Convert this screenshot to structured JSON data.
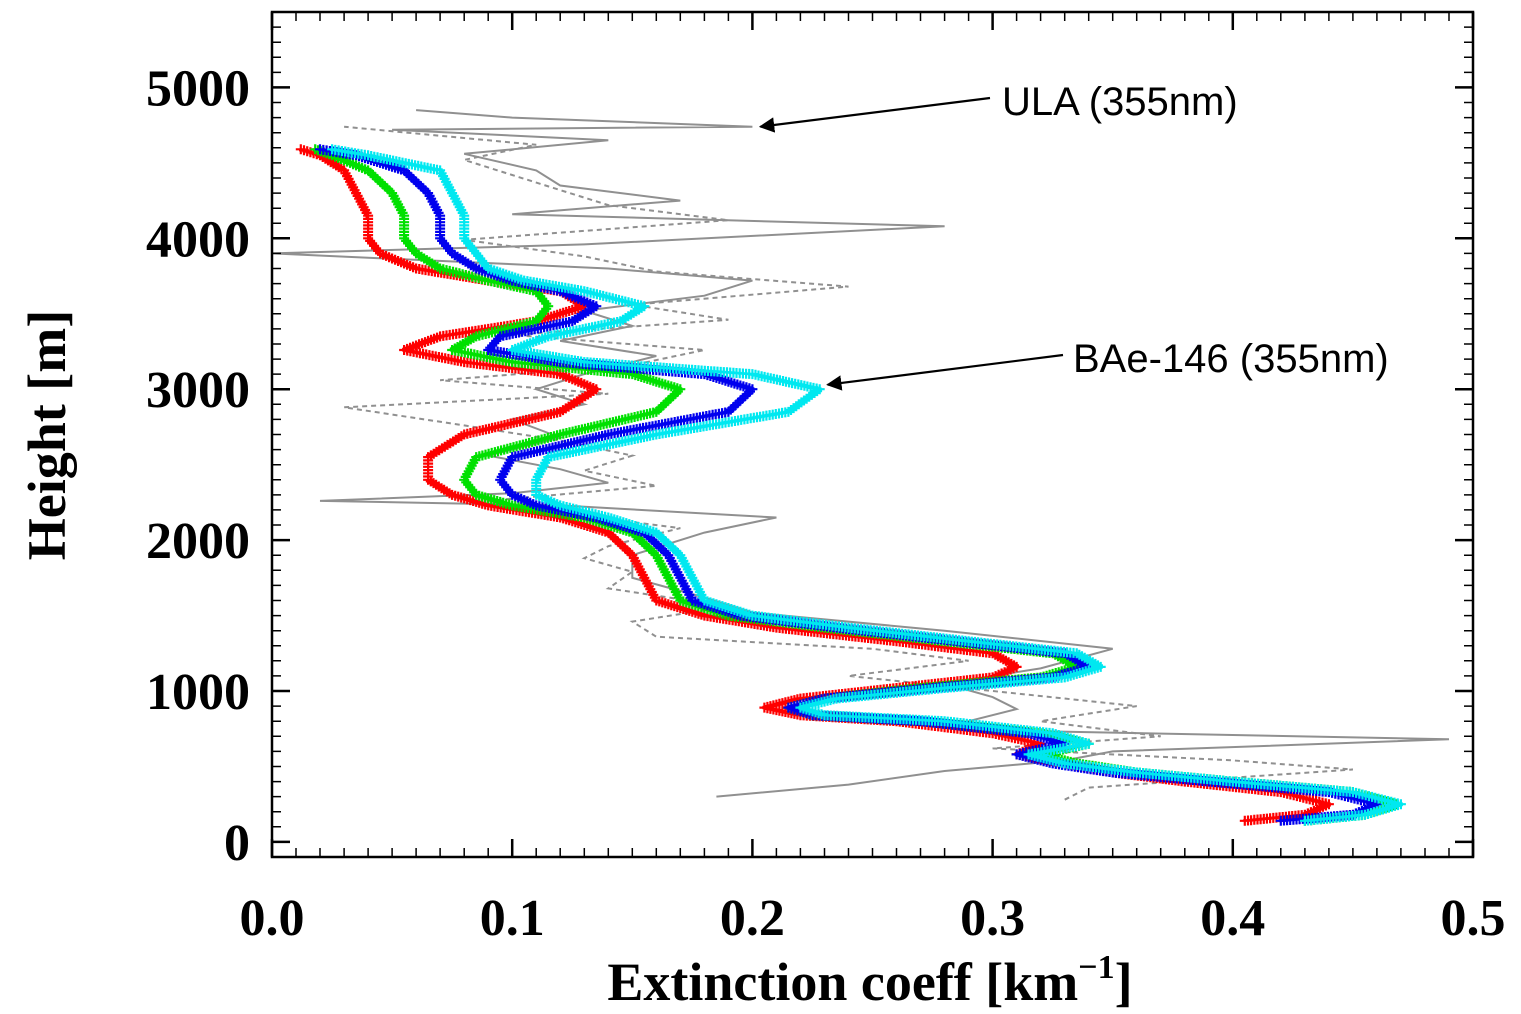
{
  "chart_data": {
    "type": "line",
    "xlabel": "Extinction coeff [km",
    "xlabel_superscript": "−1",
    "xlabel_suffix": "]",
    "ylabel": "Height [m]",
    "xlim": [
      0.0,
      0.5
    ],
    "ylim": [
      -100,
      5500
    ],
    "x_ticks": [
      "0.0",
      "0.1",
      "0.2",
      "0.3",
      "0.4",
      "0.5"
    ],
    "y_ticks": [
      "0",
      "1000",
      "2000",
      "3000",
      "4000",
      "5000"
    ],
    "annotations": [
      {
        "text": "ULA (355nm)",
        "target": [
          0.2,
          4740
        ]
      },
      {
        "text": "BAe-146 (355nm)",
        "target": [
          0.228,
          3030
        ]
      }
    ],
    "series": [
      {
        "color": "#ff0000",
        "marker": "plus",
        "points": [
          [
            0.405,
            140
          ],
          [
            0.43,
            180
          ],
          [
            0.44,
            250
          ],
          [
            0.42,
            330
          ],
          [
            0.38,
            400
          ],
          [
            0.35,
            460
          ],
          [
            0.33,
            520
          ],
          [
            0.31,
            580
          ],
          [
            0.32,
            650
          ],
          [
            0.3,
            720
          ],
          [
            0.26,
            800
          ],
          [
            0.22,
            840
          ],
          [
            0.205,
            890
          ],
          [
            0.22,
            950
          ],
          [
            0.26,
            1020
          ],
          [
            0.3,
            1090
          ],
          [
            0.31,
            1160
          ],
          [
            0.3,
            1250
          ],
          [
            0.26,
            1330
          ],
          [
            0.21,
            1420
          ],
          [
            0.18,
            1500
          ],
          [
            0.16,
            1600
          ],
          [
            0.155,
            1750
          ],
          [
            0.15,
            1900
          ],
          [
            0.14,
            2050
          ],
          [
            0.12,
            2150
          ],
          [
            0.09,
            2230
          ],
          [
            0.075,
            2300
          ],
          [
            0.065,
            2400
          ],
          [
            0.065,
            2550
          ],
          [
            0.08,
            2700
          ],
          [
            0.12,
            2850
          ],
          [
            0.135,
            3000
          ],
          [
            0.12,
            3100
          ],
          [
            0.08,
            3180
          ],
          [
            0.055,
            3260
          ],
          [
            0.07,
            3350
          ],
          [
            0.11,
            3450
          ],
          [
            0.13,
            3550
          ],
          [
            0.12,
            3650
          ],
          [
            0.09,
            3720
          ],
          [
            0.06,
            3800
          ],
          [
            0.045,
            3900
          ],
          [
            0.04,
            4000
          ],
          [
            0.04,
            4150
          ],
          [
            0.035,
            4300
          ],
          [
            0.03,
            4450
          ],
          [
            0.02,
            4550
          ],
          [
            0.012,
            4590
          ]
        ]
      },
      {
        "color": "#00e000",
        "marker": "plus",
        "points": [
          [
            0.43,
            140
          ],
          [
            0.455,
            180
          ],
          [
            0.468,
            250
          ],
          [
            0.45,
            330
          ],
          [
            0.4,
            400
          ],
          [
            0.36,
            460
          ],
          [
            0.335,
            520
          ],
          [
            0.32,
            580
          ],
          [
            0.34,
            650
          ],
          [
            0.32,
            720
          ],
          [
            0.27,
            800
          ],
          [
            0.225,
            840
          ],
          [
            0.215,
            890
          ],
          [
            0.23,
            950
          ],
          [
            0.27,
            1020
          ],
          [
            0.32,
            1090
          ],
          [
            0.335,
            1160
          ],
          [
            0.325,
            1250
          ],
          [
            0.28,
            1330
          ],
          [
            0.23,
            1420
          ],
          [
            0.19,
            1500
          ],
          [
            0.17,
            1600
          ],
          [
            0.165,
            1750
          ],
          [
            0.16,
            1900
          ],
          [
            0.15,
            2050
          ],
          [
            0.13,
            2150
          ],
          [
            0.1,
            2230
          ],
          [
            0.085,
            2300
          ],
          [
            0.08,
            2400
          ],
          [
            0.085,
            2550
          ],
          [
            0.12,
            2700
          ],
          [
            0.16,
            2850
          ],
          [
            0.17,
            3000
          ],
          [
            0.15,
            3100
          ],
          [
            0.1,
            3180
          ],
          [
            0.075,
            3260
          ],
          [
            0.085,
            3350
          ],
          [
            0.11,
            3450
          ],
          [
            0.115,
            3550
          ],
          [
            0.11,
            3650
          ],
          [
            0.09,
            3720
          ],
          [
            0.07,
            3800
          ],
          [
            0.06,
            3900
          ],
          [
            0.055,
            4000
          ],
          [
            0.055,
            4150
          ],
          [
            0.05,
            4300
          ],
          [
            0.04,
            4450
          ],
          [
            0.025,
            4550
          ],
          [
            0.018,
            4590
          ]
        ]
      },
      {
        "color": "#0000ee",
        "marker": "plus",
        "points": [
          [
            0.42,
            140
          ],
          [
            0.45,
            180
          ],
          [
            0.46,
            250
          ],
          [
            0.44,
            330
          ],
          [
            0.39,
            400
          ],
          [
            0.35,
            460
          ],
          [
            0.325,
            520
          ],
          [
            0.31,
            580
          ],
          [
            0.33,
            650
          ],
          [
            0.315,
            720
          ],
          [
            0.27,
            800
          ],
          [
            0.225,
            840
          ],
          [
            0.215,
            890
          ],
          [
            0.23,
            950
          ],
          [
            0.275,
            1020
          ],
          [
            0.325,
            1090
          ],
          [
            0.34,
            1160
          ],
          [
            0.33,
            1250
          ],
          [
            0.285,
            1330
          ],
          [
            0.235,
            1420
          ],
          [
            0.195,
            1500
          ],
          [
            0.175,
            1600
          ],
          [
            0.17,
            1750
          ],
          [
            0.165,
            1900
          ],
          [
            0.155,
            2050
          ],
          [
            0.135,
            2150
          ],
          [
            0.11,
            2230
          ],
          [
            0.1,
            2300
          ],
          [
            0.095,
            2400
          ],
          [
            0.1,
            2550
          ],
          [
            0.14,
            2700
          ],
          [
            0.19,
            2850
          ],
          [
            0.2,
            3000
          ],
          [
            0.18,
            3100
          ],
          [
            0.12,
            3180
          ],
          [
            0.09,
            3260
          ],
          [
            0.095,
            3350
          ],
          [
            0.125,
            3450
          ],
          [
            0.135,
            3550
          ],
          [
            0.12,
            3650
          ],
          [
            0.1,
            3720
          ],
          [
            0.085,
            3800
          ],
          [
            0.075,
            3900
          ],
          [
            0.07,
            4000
          ],
          [
            0.07,
            4150
          ],
          [
            0.065,
            4300
          ],
          [
            0.055,
            4450
          ],
          [
            0.035,
            4550
          ],
          [
            0.02,
            4590
          ]
        ]
      },
      {
        "color": "#00e8f0",
        "marker": "plus",
        "points": [
          [
            0.43,
            140
          ],
          [
            0.455,
            180
          ],
          [
            0.47,
            250
          ],
          [
            0.45,
            330
          ],
          [
            0.4,
            400
          ],
          [
            0.36,
            460
          ],
          [
            0.33,
            520
          ],
          [
            0.315,
            580
          ],
          [
            0.34,
            650
          ],
          [
            0.325,
            720
          ],
          [
            0.28,
            800
          ],
          [
            0.23,
            840
          ],
          [
            0.22,
            890
          ],
          [
            0.235,
            950
          ],
          [
            0.28,
            1020
          ],
          [
            0.33,
            1090
          ],
          [
            0.345,
            1160
          ],
          [
            0.335,
            1250
          ],
          [
            0.29,
            1330
          ],
          [
            0.24,
            1420
          ],
          [
            0.2,
            1500
          ],
          [
            0.18,
            1600
          ],
          [
            0.175,
            1750
          ],
          [
            0.17,
            1900
          ],
          [
            0.16,
            2050
          ],
          [
            0.14,
            2150
          ],
          [
            0.12,
            2230
          ],
          [
            0.11,
            2300
          ],
          [
            0.11,
            2400
          ],
          [
            0.115,
            2550
          ],
          [
            0.16,
            2700
          ],
          [
            0.215,
            2850
          ],
          [
            0.228,
            3000
          ],
          [
            0.2,
            3100
          ],
          [
            0.13,
            3180
          ],
          [
            0.1,
            3260
          ],
          [
            0.115,
            3350
          ],
          [
            0.145,
            3450
          ],
          [
            0.155,
            3550
          ],
          [
            0.13,
            3650
          ],
          [
            0.105,
            3720
          ],
          [
            0.09,
            3800
          ],
          [
            0.085,
            3900
          ],
          [
            0.08,
            4000
          ],
          [
            0.08,
            4150
          ],
          [
            0.075,
            4300
          ],
          [
            0.07,
            4450
          ],
          [
            0.04,
            4550
          ],
          [
            0.025,
            4590
          ]
        ]
      },
      {
        "color": "#909090",
        "marker": "none",
        "dash": "solid",
        "points": [
          [
            0.185,
            300
          ],
          [
            0.24,
            380
          ],
          [
            0.28,
            470
          ],
          [
            0.33,
            540
          ],
          [
            0.35,
            600
          ],
          [
            0.49,
            680
          ],
          [
            0.3,
            740
          ],
          [
            0.29,
            800
          ],
          [
            0.31,
            880
          ],
          [
            0.3,
            960
          ],
          [
            0.28,
            1050
          ],
          [
            0.32,
            1150
          ],
          [
            0.35,
            1280
          ],
          [
            0.28,
            1400
          ],
          [
            0.2,
            1520
          ],
          [
            0.18,
            1620
          ],
          [
            0.15,
            1750
          ],
          [
            0.15,
            1900
          ],
          [
            0.18,
            2050
          ],
          [
            0.21,
            2150
          ],
          [
            0.12,
            2230
          ],
          [
            0.02,
            2260
          ],
          [
            0.1,
            2310
          ],
          [
            0.14,
            2380
          ],
          [
            0.12,
            2470
          ],
          [
            0.09,
            2560
          ],
          [
            0.12,
            2680
          ],
          [
            0.1,
            2800
          ],
          [
            0.13,
            2900
          ],
          [
            0.11,
            3000
          ],
          [
            0.13,
            3100
          ],
          [
            0.16,
            3220
          ],
          [
            0.12,
            3320
          ],
          [
            0.15,
            3420
          ],
          [
            0.13,
            3520
          ],
          [
            0.18,
            3620
          ],
          [
            0.2,
            3720
          ],
          [
            0.14,
            3800
          ],
          [
            0.0,
            3900
          ],
          [
            0.13,
            3960
          ],
          [
            0.28,
            4080
          ],
          [
            0.1,
            4160
          ],
          [
            0.17,
            4250
          ],
          [
            0.12,
            4350
          ],
          [
            0.11,
            4450
          ],
          [
            0.08,
            4560
          ],
          [
            0.14,
            4650
          ],
          [
            0.05,
            4720
          ],
          [
            0.2,
            4740
          ],
          [
            0.1,
            4800
          ],
          [
            0.06,
            4850
          ]
        ]
      },
      {
        "color": "#909090",
        "marker": "none",
        "dash": "dashed",
        "points": [
          [
            0.33,
            280
          ],
          [
            0.34,
            360
          ],
          [
            0.45,
            480
          ],
          [
            0.4,
            540
          ],
          [
            0.3,
            620
          ],
          [
            0.37,
            700
          ],
          [
            0.32,
            800
          ],
          [
            0.36,
            900
          ],
          [
            0.3,
            1000
          ],
          [
            0.24,
            1100
          ],
          [
            0.29,
            1200
          ],
          [
            0.25,
            1280
          ],
          [
            0.16,
            1360
          ],
          [
            0.15,
            1460
          ],
          [
            0.19,
            1560
          ],
          [
            0.14,
            1680
          ],
          [
            0.15,
            1790
          ],
          [
            0.13,
            1880
          ],
          [
            0.14,
            1960
          ],
          [
            0.17,
            2080
          ],
          [
            0.13,
            2160
          ],
          [
            0.09,
            2260
          ],
          [
            0.16,
            2360
          ],
          [
            0.13,
            2460
          ],
          [
            0.15,
            2560
          ],
          [
            0.12,
            2660
          ],
          [
            0.08,
            2760
          ],
          [
            0.03,
            2880
          ],
          [
            0.14,
            2970
          ],
          [
            0.07,
            3060
          ],
          [
            0.15,
            3160
          ],
          [
            0.18,
            3260
          ],
          [
            0.1,
            3360
          ],
          [
            0.19,
            3460
          ],
          [
            0.15,
            3560
          ],
          [
            0.24,
            3680
          ],
          [
            0.16,
            3780
          ],
          [
            0.13,
            3880
          ],
          [
            0.08,
            3990
          ],
          [
            0.19,
            4120
          ],
          [
            0.14,
            4220
          ],
          [
            0.12,
            4320
          ],
          [
            0.1,
            4420
          ],
          [
            0.08,
            4520
          ],
          [
            0.11,
            4620
          ],
          [
            0.03,
            4740
          ]
        ]
      }
    ]
  }
}
